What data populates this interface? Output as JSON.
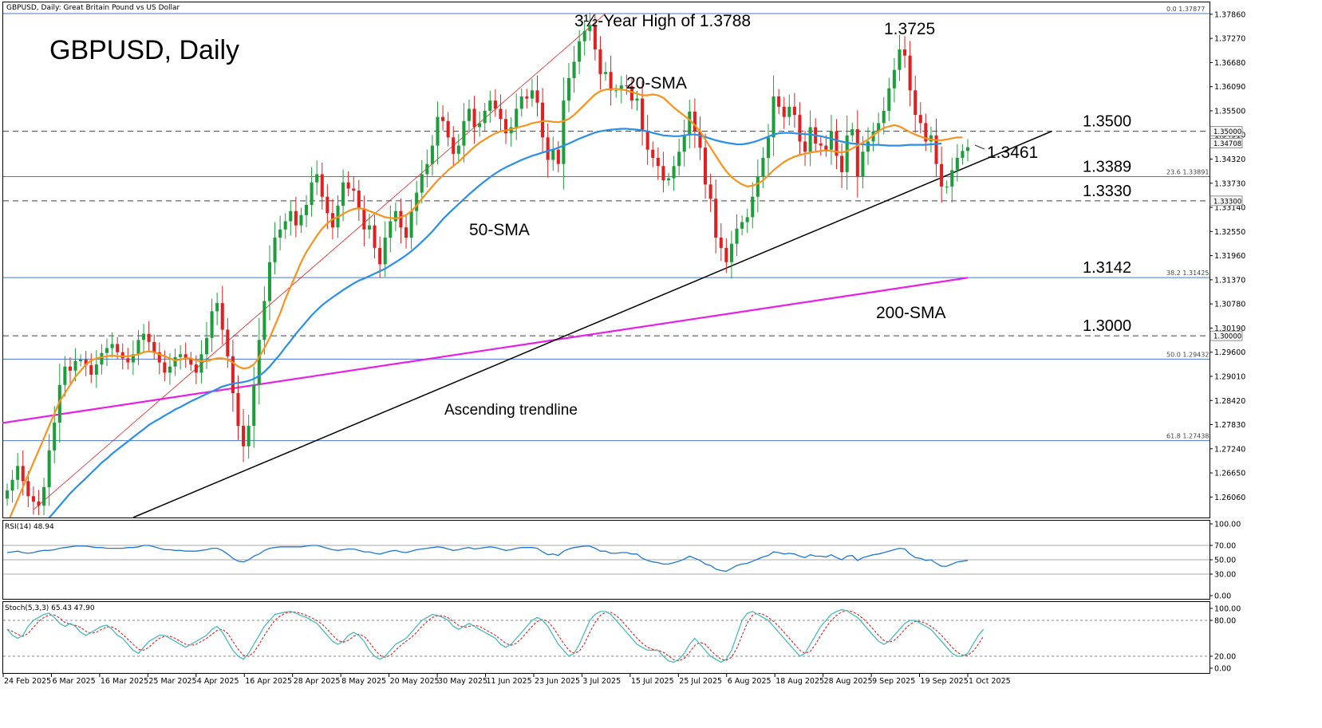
{
  "header": {
    "symbol_desc": "GBPUSD, Daily:  Great Britain Pound vs US Dollar",
    "title": "GBPUSD, Daily"
  },
  "colors": {
    "bull": "#1e9e3a",
    "bear": "#e02020",
    "sma20": "#f7931e",
    "sma50": "#2a8fe8",
    "sma200": "#e81ee8",
    "trend": "#000000",
    "level_solid": "#4a78c8",
    "level_dash": "#444444",
    "rsi": "#1f78d1",
    "stoch_main": "#3cb8b8",
    "stoch_signal": "#e02020"
  },
  "price_axis": {
    "ticks": [
      "1.37860",
      "1.37270",
      "1.36680",
      "1.36090",
      "1.35500",
      "1.34910",
      "1.34320",
      "1.33730",
      "1.33140",
      "1.32550",
      "1.31960",
      "1.31370",
      "1.30780",
      "1.30190",
      "1.29600",
      "1.29010",
      "1.28420",
      "1.27830",
      "1.27240",
      "1.26650",
      "1.26060"
    ],
    "boxes": [
      {
        "label": "1.35000",
        "value": 1.35
      },
      {
        "label": "1.34708",
        "value": 1.34708
      },
      {
        "label": "1.33300",
        "value": 1.333
      },
      {
        "label": "1.30000",
        "value": 1.3
      }
    ]
  },
  "levels": {
    "fib": [
      {
        "tag": "0.0  1.37877",
        "value": 1.37877
      },
      {
        "tag": "23.6  1.33891",
        "value": 1.33891
      },
      {
        "tag": "38.2  1.31425",
        "value": 1.31425
      },
      {
        "tag": "50.0  1.29432",
        "value": 1.29432
      },
      {
        "tag": "61.8  1.27438",
        "value": 1.27438
      }
    ],
    "dashed": [
      1.35,
      1.333,
      1.3
    ],
    "labels": [
      {
        "text": "1.3500",
        "value": 1.35
      },
      {
        "text": "1.3389",
        "value": 1.33891
      },
      {
        "text": "1.3330",
        "value": 1.333
      },
      {
        "text": "1.3142",
        "value": 1.31425
      },
      {
        "text": "1.3000",
        "value": 1.3
      }
    ]
  },
  "annotations": {
    "high": "3½-Year High of 1.3788",
    "peak2": "1.3725",
    "sma20": "20-SMA",
    "sma50": "50-SMA",
    "sma200": "200-SMA",
    "trend": "Ascending trendline",
    "last": "1.3461"
  },
  "rsi": {
    "label": "RSI(14) 48.94",
    "ticks": [
      "100.00",
      "70.00",
      "50.00",
      "30.00",
      "0.00"
    ]
  },
  "stoch": {
    "label": "Stoch(5,3,3) 65.43 47.90",
    "ticks": [
      "100.00",
      "80.00",
      "20.00",
      "0.00"
    ]
  },
  "x_axis": {
    "labels": [
      "24 Feb 2025",
      "6 Mar 2025",
      "16 Mar 2025",
      "25 Mar 2025",
      "4 Apr 2025",
      "16 Apr 2025",
      "28 Apr 2025",
      "8 May 2025",
      "20 May 2025",
      "30 May 2025",
      "11 Jun 2025",
      "23 Jun 2025",
      "3 Jul 2025",
      "15 Jul 2025",
      "25 Jul 2025",
      "6 Aug 2025",
      "18 Aug 2025",
      "28 Aug 2025",
      "9 Sep 2025",
      "19 Sep 2025",
      "1 Oct 2025"
    ]
  },
  "chart_data": {
    "type": "candlestick",
    "title": "GBPUSD, Daily",
    "y_range": [
      1.2556,
      1.3815
    ],
    "closes": [
      1.2622,
      1.2648,
      1.2682,
      1.2645,
      1.2608,
      1.2595,
      1.2585,
      1.263,
      1.272,
      1.2788,
      1.288,
      1.2925,
      1.2915,
      1.2938,
      1.2942,
      1.2928,
      1.2905,
      1.293,
      1.2958,
      1.297,
      1.298,
      1.296,
      1.2945,
      1.2935,
      1.2955,
      1.299,
      1.3005,
      1.2985,
      1.296,
      1.2935,
      1.291,
      1.2925,
      1.2948,
      1.2955,
      1.2945,
      1.293,
      1.291,
      1.2955,
      1.2995,
      1.306,
      1.308,
      1.3015,
      1.295,
      1.286,
      1.278,
      1.273,
      1.278,
      1.288,
      1.299,
      1.3085,
      1.318,
      1.324,
      1.326,
      1.328,
      1.3305,
      1.327,
      1.3295,
      1.332,
      1.3375,
      1.3395,
      1.334,
      1.33,
      1.3265,
      1.3318,
      1.3375,
      1.336,
      1.3355,
      1.331,
      1.326,
      1.327,
      1.3215,
      1.3175,
      1.324,
      1.328,
      1.3305,
      1.3265,
      1.324,
      1.3305,
      1.335,
      1.3395,
      1.342,
      1.3465,
      1.3535,
      1.3525,
      1.3485,
      1.3445,
      1.3465,
      1.3525,
      1.3555,
      1.351,
      1.352,
      1.355,
      1.3575,
      1.3555,
      1.353,
      1.3495,
      1.351,
      1.3555,
      1.3585,
      1.358,
      1.36,
      1.357,
      1.3485,
      1.343,
      1.3455,
      1.342,
      1.3575,
      1.363,
      1.367,
      1.372,
      1.3745,
      1.376,
      1.37,
      1.364,
      1.3645,
      1.36,
      1.36,
      1.3612,
      1.361,
      1.3575,
      1.358,
      1.35,
      1.3455,
      1.3435,
      1.3415,
      1.338,
      1.3385,
      1.3415,
      1.345,
      1.349,
      1.3548,
      1.35,
      1.346,
      1.337,
      1.3335,
      1.324,
      1.3215,
      1.318,
      1.3225,
      1.3262,
      1.3278,
      1.329,
      1.334,
      1.339,
      1.3435,
      1.3485,
      1.3585,
      1.356,
      1.3535,
      1.356,
      1.354,
      1.3475,
      1.345,
      1.351,
      1.347,
      1.3465,
      1.3455,
      1.35,
      1.344,
      1.34,
      1.349,
      1.3505,
      1.339,
      1.345,
      1.3475,
      1.35,
      1.352,
      1.355,
      1.3605,
      1.365,
      1.37,
      1.3685,
      1.36,
      1.354,
      1.352,
      1.3475,
      1.349,
      1.342,
      1.3365,
      1.3365,
      1.3405,
      1.3435,
      1.3452,
      1.3461
    ],
    "sma20": {
      "start": 0,
      "values": [
        1.254,
        1.257,
        1.26,
        1.263,
        1.266,
        1.269,
        1.272,
        1.275,
        1.278,
        1.281,
        1.284,
        1.286,
        1.288,
        1.29,
        1.2915,
        1.293,
        1.294,
        1.2945,
        1.2948,
        1.295,
        1.2952,
        1.295,
        1.295,
        1.295,
        1.2952,
        1.2955,
        1.296,
        1.2962,
        1.296,
        1.2955,
        1.295,
        1.2945,
        1.294,
        1.2942,
        1.2945,
        1.2945,
        1.294,
        1.2938,
        1.2938,
        1.2942,
        1.2945,
        1.2945,
        1.2942,
        1.2935,
        1.2925,
        1.292,
        1.2922,
        1.293,
        1.2948,
        1.297,
        1.2995,
        1.3025,
        1.3055,
        1.309,
        1.312,
        1.315,
        1.318,
        1.3205,
        1.3225,
        1.3245,
        1.3262,
        1.3275,
        1.3285,
        1.329,
        1.3298,
        1.3305,
        1.331,
        1.3312,
        1.331,
        1.3305,
        1.33,
        1.3295,
        1.329,
        1.3288,
        1.3287,
        1.329,
        1.3295,
        1.3305,
        1.3318,
        1.3335,
        1.335,
        1.3365,
        1.338,
        1.3392,
        1.3405,
        1.3415,
        1.3425,
        1.3438,
        1.345,
        1.3462,
        1.3472,
        1.348,
        1.3488,
        1.3495,
        1.35,
        1.3502,
        1.3505,
        1.3508,
        1.3512,
        1.3515,
        1.352,
        1.3522,
        1.3525,
        1.3525,
        1.3523,
        1.3522,
        1.3525,
        1.353,
        1.354,
        1.3552,
        1.3565,
        1.3578,
        1.359,
        1.3598,
        1.3602,
        1.3603,
        1.3604,
        1.3602,
        1.36,
        1.3596,
        1.3592,
        1.3588,
        1.3588,
        1.359,
        1.3588,
        1.3582,
        1.357,
        1.3558,
        1.3548,
        1.3538,
        1.3528,
        1.3515,
        1.35,
        1.348,
        1.346,
        1.344,
        1.342,
        1.3402,
        1.3388,
        1.3378,
        1.337,
        1.3365,
        1.3367,
        1.3372,
        1.338,
        1.3392,
        1.3405,
        1.3415,
        1.3425,
        1.3432,
        1.3438,
        1.3442,
        1.3445,
        1.3448,
        1.345,
        1.3452,
        1.3453,
        1.3452,
        1.345,
        1.3448,
        1.3452,
        1.3458,
        1.3465,
        1.3472,
        1.348,
        1.349,
        1.35,
        1.3508,
        1.3512,
        1.3515,
        1.3512,
        1.3505,
        1.3498,
        1.3492,
        1.3487,
        1.3483,
        1.348,
        1.3478,
        1.3478,
        1.348,
        1.3483,
        1.3485,
        1.3485
      ]
    },
    "sma50": {
      "start": 0,
      "values": [
        1.248,
        1.2485,
        1.249,
        1.25,
        1.251,
        1.252,
        1.253,
        1.254,
        1.2555,
        1.257,
        1.2585,
        1.26,
        1.2615,
        1.2628,
        1.264,
        1.2652,
        1.2665,
        1.2677,
        1.269,
        1.27,
        1.2712,
        1.2722,
        1.2732,
        1.2742,
        1.2752,
        1.2762,
        1.2772,
        1.2782,
        1.279,
        1.2797,
        1.2805,
        1.2812,
        1.282,
        1.2826,
        1.2833,
        1.284,
        1.2846,
        1.2852,
        1.2858,
        1.2864,
        1.287,
        1.2876,
        1.288,
        1.2883,
        1.2885,
        1.2887,
        1.289,
        1.2895,
        1.2902,
        1.2912,
        1.2925,
        1.294,
        1.2955,
        1.2972,
        1.2988,
        1.3005,
        1.302,
        1.3035,
        1.305,
        1.3063,
        1.3075,
        1.3085,
        1.3094,
        1.3103,
        1.3112,
        1.312,
        1.3128,
        1.3135,
        1.314,
        1.3146,
        1.3152,
        1.3158,
        1.3164,
        1.3172,
        1.318,
        1.3188,
        1.3197,
        1.3207,
        1.3218,
        1.323,
        1.3242,
        1.3255,
        1.327,
        1.3285,
        1.3298,
        1.331,
        1.3322,
        1.3334,
        1.3346,
        1.3357,
        1.3368,
        1.3378,
        1.3388,
        1.3397,
        1.3405,
        1.3412,
        1.3418,
        1.3424,
        1.343,
        1.3435,
        1.344,
        1.3444,
        1.3448,
        1.3452,
        1.3455,
        1.346,
        1.3465,
        1.347,
        1.3476,
        1.3482,
        1.3487,
        1.3492,
        1.3497,
        1.35,
        1.3502,
        1.3504,
        1.3505,
        1.3506,
        1.3506,
        1.3505,
        1.3504,
        1.3502,
        1.35,
        1.3496,
        1.3493,
        1.349,
        1.3489,
        1.3488,
        1.3488,
        1.349,
        1.3492,
        1.3492,
        1.349,
        1.3486,
        1.3482,
        1.3478,
        1.3475,
        1.3472,
        1.347,
        1.3468,
        1.3468,
        1.347,
        1.3473,
        1.3477,
        1.3482,
        1.3487,
        1.3492,
        1.3495,
        1.3496,
        1.3496,
        1.3495,
        1.3494,
        1.3493,
        1.3492,
        1.349,
        1.3488,
        1.3485,
        1.3482,
        1.3478,
        1.3475,
        1.3472,
        1.347,
        1.3469,
        1.3468,
        1.3467,
        1.3467,
        1.3467,
        1.3466,
        1.3465,
        1.3465,
        1.3465,
        1.3466,
        1.3467,
        1.3467,
        1.3467,
        1.3467,
        1.3468,
        1.3469,
        1.347
      ]
    },
    "sma200": {
      "start": 0,
      "values": [
        1.2787,
        1.3142
      ]
    },
    "trendline": {
      "from_index": 24,
      "from_value": 1.2556,
      "to_index": 199,
      "to_value": 1.35
    },
    "rsi": [
      60,
      61,
      62,
      60,
      59,
      60,
      62,
      63,
      63,
      64,
      66,
      67,
      68,
      69,
      69,
      69,
      68,
      67,
      67,
      66,
      66,
      66,
      66,
      67,
      67,
      68,
      70,
      70,
      68,
      66,
      64,
      64,
      63,
      63,
      62,
      62,
      62,
      63,
      64,
      66,
      66,
      63,
      58,
      52,
      48,
      47,
      50,
      55,
      58,
      63,
      66,
      67,
      68,
      68,
      68,
      68,
      68,
      69,
      70,
      70,
      68,
      66,
      64,
      63,
      64,
      65,
      65,
      63,
      61,
      61,
      59,
      58,
      60,
      62,
      63,
      61,
      60,
      62,
      64,
      65,
      66,
      67,
      68,
      67,
      65,
      63,
      64,
      66,
      67,
      65,
      66,
      67,
      68,
      67,
      65,
      63,
      64,
      66,
      67,
      67,
      67,
      66,
      61,
      57,
      58,
      56,
      62,
      65,
      67,
      68,
      69,
      69,
      66,
      62,
      62,
      59,
      59,
      60,
      60,
      58,
      58,
      52,
      49,
      47,
      46,
      44,
      44,
      46,
      48,
      51,
      55,
      52,
      49,
      44,
      42,
      37,
      35,
      34,
      38,
      42,
      44,
      45,
      48,
      51,
      54,
      56,
      61,
      60,
      58,
      59,
      58,
      55,
      53,
      57,
      55,
      55,
      54,
      57,
      53,
      50,
      55,
      56,
      49,
      53,
      55,
      57,
      58,
      60,
      62,
      64,
      66,
      65,
      58,
      53,
      52,
      49,
      50,
      45,
      41,
      41,
      44,
      47,
      48,
      49
    ],
    "stoch": [
      65,
      55,
      50,
      55,
      70,
      80,
      85,
      90,
      92,
      85,
      75,
      70,
      75,
      70,
      60,
      55,
      60,
      65,
      70,
      72,
      65,
      55,
      50,
      40,
      30,
      25,
      35,
      45,
      50,
      55,
      55,
      50,
      45,
      40,
      35,
      40,
      45,
      50,
      55,
      65,
      70,
      60,
      45,
      30,
      20,
      15,
      25,
      40,
      55,
      70,
      80,
      90,
      92,
      94,
      95,
      92,
      88,
      85,
      80,
      75,
      65,
      55,
      45,
      40,
      45,
      55,
      60,
      55,
      45,
      30,
      20,
      15,
      20,
      30,
      40,
      45,
      50,
      60,
      70,
      80,
      85,
      90,
      88,
      85,
      80,
      70,
      65,
      70,
      75,
      70,
      65,
      60,
      55,
      50,
      40,
      35,
      40,
      50,
      60,
      70,
      80,
      85,
      80,
      70,
      55,
      40,
      30,
      20,
      25,
      40,
      60,
      80,
      90,
      95,
      95,
      90,
      80,
      70,
      60,
      50,
      40,
      35,
      30,
      30,
      30,
      20,
      12,
      10,
      15,
      25,
      40,
      50,
      40,
      30,
      20,
      15,
      10,
      15,
      30,
      55,
      80,
      92,
      95,
      90,
      85,
      80,
      70,
      60,
      50,
      40,
      30,
      20,
      25,
      40,
      55,
      70,
      80,
      90,
      95,
      98,
      96,
      90,
      85,
      75,
      65,
      55,
      45,
      40,
      45,
      55,
      65,
      75,
      80,
      80,
      75,
      70,
      65,
      55,
      45,
      35,
      25,
      20,
      20,
      25,
      40,
      55,
      65
    ]
  }
}
